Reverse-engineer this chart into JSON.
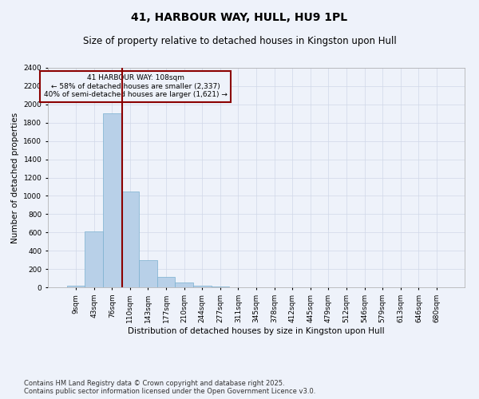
{
  "title": "41, HARBOUR WAY, HULL, HU9 1PL",
  "subtitle": "Size of property relative to detached houses in Kingston upon Hull",
  "xlabel": "Distribution of detached houses by size in Kingston upon Hull",
  "ylabel": "Number of detached properties",
  "categories": [
    "9sqm",
    "43sqm",
    "76sqm",
    "110sqm",
    "143sqm",
    "177sqm",
    "210sqm",
    "244sqm",
    "277sqm",
    "311sqm",
    "345sqm",
    "378sqm",
    "412sqm",
    "445sqm",
    "479sqm",
    "512sqm",
    "546sqm",
    "579sqm",
    "613sqm",
    "646sqm",
    "680sqm"
  ],
  "values": [
    15,
    610,
    1900,
    1050,
    295,
    110,
    50,
    20,
    5,
    2,
    1,
    0,
    0,
    0,
    0,
    0,
    0,
    0,
    0,
    0,
    0
  ],
  "bar_color": "#b8d0e8",
  "bar_edge_color": "#7ab0d0",
  "grid_color": "#d0d8e8",
  "background_color": "#eef2fa",
  "vline_color": "#8b0000",
  "vline_pos": 2.55,
  "annotation_text": "41 HARBOUR WAY: 108sqm\n← 58% of detached houses are smaller (2,337)\n40% of semi-detached houses are larger (1,621) →",
  "annotation_box_color": "#8b0000",
  "footer": "Contains HM Land Registry data © Crown copyright and database right 2025.\nContains public sector information licensed under the Open Government Licence v3.0.",
  "ylim": [
    0,
    2400
  ],
  "yticks": [
    0,
    200,
    400,
    600,
    800,
    1000,
    1200,
    1400,
    1600,
    1800,
    2000,
    2200,
    2400
  ],
  "title_fontsize": 10,
  "subtitle_fontsize": 8.5,
  "axis_label_fontsize": 7.5,
  "tick_fontsize": 6.5,
  "annotation_fontsize": 6.5,
  "footer_fontsize": 6.0
}
